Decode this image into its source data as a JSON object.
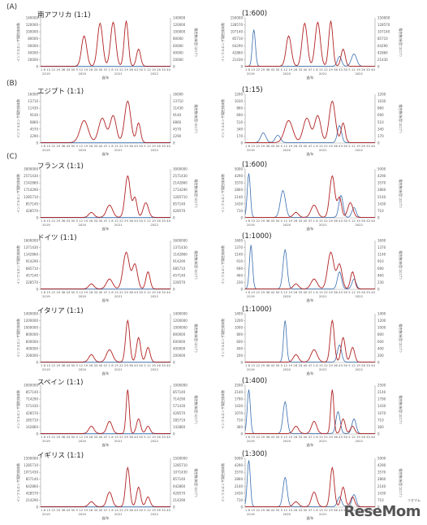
{
  "sections": [
    "(A)",
    "(B)",
    "(C)"
  ],
  "axis_labels": {
    "left": "インフルエンザ陽性検体数",
    "right": "陽性数(新型コロナ)",
    "x": "週/年"
  },
  "logo": {
    "text": "ReseMom",
    "kana": "リセマム"
  },
  "colors": {
    "covid": "#b22222",
    "influenza": "#3a6fb0"
  },
  "chart_data": [
    {
      "id": "za-1",
      "type": "line",
      "title": "南アフリカ (1:1)",
      "yleft": [
        0,
        20000,
        40000,
        60000,
        80000,
        100000,
        120000,
        140000
      ],
      "yright": [
        0,
        20000,
        40000,
        60000,
        80000,
        100000,
        120000,
        140000
      ],
      "ylim": [
        0,
        140000
      ],
      "covid": [
        0,
        0,
        0,
        0,
        0,
        0,
        0,
        0,
        0,
        0,
        0,
        0,
        0,
        0,
        0,
        0,
        0,
        0,
        0,
        0,
        0,
        0,
        0,
        0,
        0,
        0,
        0,
        0,
        0,
        0,
        0,
        0,
        0,
        0,
        0,
        0,
        0,
        0,
        0,
        0,
        0,
        0,
        0,
        0,
        0,
        0,
        0,
        0,
        0,
        0,
        0,
        0,
        0,
        0,
        0,
        0,
        0,
        0,
        0,
        0,
        0,
        0,
        0,
        0,
        0,
        0,
        0,
        0,
        0,
        0,
        0,
        0,
        0,
        0,
        0,
        0,
        0,
        0,
        0,
        0,
        0,
        0,
        0,
        0,
        0,
        0,
        0,
        0,
        0,
        0,
        0,
        0,
        0,
        0,
        0,
        0,
        0,
        0,
        0,
        0,
        0,
        0,
        0,
        0,
        0,
        0,
        0,
        0,
        0,
        0,
        0,
        0,
        0,
        0,
        0,
        0,
        0,
        0,
        0,
        0,
        0,
        0,
        0,
        0,
        0,
        0,
        0,
        0
      ],
      "influenza": []
    },
    {
      "id": "za-2",
      "type": "line",
      "title": "(1:600)",
      "ylim": [
        0,
        150000
      ],
      "covid": [],
      "influenza": []
    },
    {
      "id": "eg-1",
      "type": "line",
      "title": "エジプト (1:1)",
      "ylim": [
        0,
        16000
      ],
      "covid": [],
      "influenza": []
    },
    {
      "id": "eg-2",
      "type": "line",
      "title": "(1:15)",
      "ylim": [
        0,
        1200
      ],
      "covid": [],
      "influenza": []
    },
    {
      "id": "fr-1",
      "type": "line",
      "title": "フランス (1:1)",
      "ylim": [
        0,
        3000000
      ],
      "covid": [],
      "influenza": []
    },
    {
      "id": "fr-2",
      "type": "line",
      "title": "(1:600)",
      "ylim": [
        0,
        5000
      ],
      "covid": [],
      "influenza": []
    },
    {
      "id": "de-1",
      "type": "line",
      "title": "ドイツ (1:1)",
      "ylim": [
        0,
        1600000
      ],
      "covid": [],
      "influenza": []
    },
    {
      "id": "de-2",
      "type": "line",
      "title": "(1:1000)",
      "ylim": [
        0,
        1600
      ],
      "covid": [],
      "influenza": []
    },
    {
      "id": "it-1",
      "type": "line",
      "title": "イタリア (1:1)",
      "ylim": [
        0,
        1400000
      ],
      "covid": [],
      "influenza": []
    },
    {
      "id": "it-2",
      "type": "line",
      "title": "(1:1000)",
      "ylim": [
        0,
        1400
      ],
      "covid": [],
      "influenza": []
    },
    {
      "id": "es-1",
      "type": "line",
      "title": "スペイン (1:1)",
      "ylim": [
        0,
        1000000
      ],
      "covid": [],
      "influenza": []
    },
    {
      "id": "es-2",
      "type": "line",
      "title": "(1:400)",
      "ylim": [
        0,
        2500
      ],
      "covid": [],
      "influenza": []
    },
    {
      "id": "uk-1",
      "type": "line",
      "title": "イギリス (1:1)",
      "ylim": [
        0,
        1500000
      ],
      "covid": [],
      "influenza": []
    },
    {
      "id": "uk-2",
      "type": "line",
      "title": "(1:300)",
      "ylim": [
        0,
        5000
      ],
      "covid": [],
      "influenza": []
    }
  ],
  "years": [
    "2019",
    "2020",
    "2021",
    "2022"
  ],
  "week_ticks": "1 8 15 22 29 36 43 50 5 12 19 26 33 40 47 1 8 15 22 29 36 43 50 5 12 19 26 33 40"
}
